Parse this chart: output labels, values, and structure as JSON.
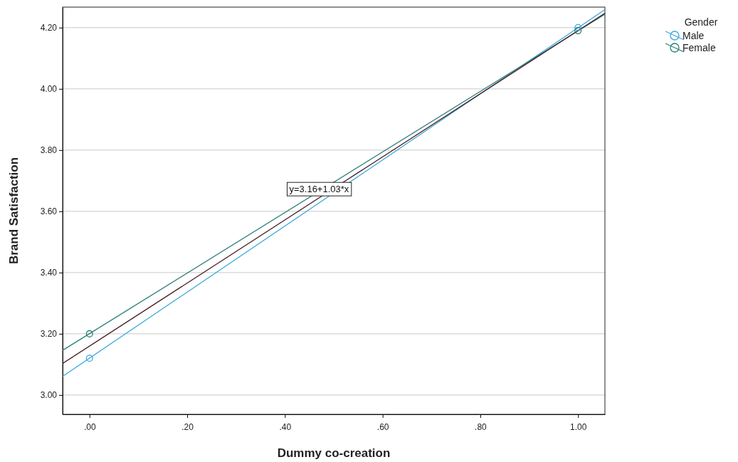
{
  "chart_data": {
    "type": "line",
    "xlabel": "Dummy co-creation",
    "ylabel": "Brand Satisfaction",
    "legend_title": "Gender",
    "legend": "top right",
    "grid": "y",
    "xlim": [
      -0.055,
      1.055
    ],
    "ylim": [
      2.937,
      4.267
    ],
    "xticks": [
      {
        "value": 0,
        "label": ".00"
      },
      {
        "value": 0.2,
        "label": ".20"
      },
      {
        "value": 0.4,
        "label": ".40"
      },
      {
        "value": 0.6,
        "label": ".60"
      },
      {
        "value": 0.8,
        "label": ".80"
      },
      {
        "value": 1,
        "label": "1.00"
      }
    ],
    "yticks": [
      {
        "value": 3,
        "label": "3.00"
      },
      {
        "value": 3.2,
        "label": "3.20"
      },
      {
        "value": 3.4,
        "label": "3.40"
      },
      {
        "value": 3.6,
        "label": "3.60"
      },
      {
        "value": 3.8,
        "label": "3.80"
      },
      {
        "value": 4,
        "label": "4.00"
      },
      {
        "value": 4.2,
        "label": "4.20"
      }
    ],
    "annotations": [
      {
        "text": "y=3.16+1.03*x",
        "x": 0.47,
        "y": 3.67
      }
    ],
    "series": [
      {
        "color": "#3ba8dc",
        "x": [
          -0.055,
          1.055
        ],
        "values": [
          3.061,
          4.259
        ]
      },
      {
        "color": "#2d7f78",
        "x": [
          -0.055,
          1.055
        ],
        "values": [
          3.146,
          4.244
        ]
      },
      {
        "color": "#4a2228",
        "x": [
          -0.055,
          1.055
        ],
        "values": [
          3.103,
          4.247
        ]
      },
      {
        "type": "scatter",
        "name": "Male",
        "marker": "circle",
        "color": "#3ba8dc",
        "x": [
          0,
          1
        ],
        "values": [
          3.12,
          4.2
        ]
      },
      {
        "type": "scatter",
        "name": "Female",
        "marker": "circle",
        "color": "#2d7f78",
        "x": [
          0,
          1
        ],
        "values": [
          3.2,
          4.19
        ]
      }
    ]
  }
}
